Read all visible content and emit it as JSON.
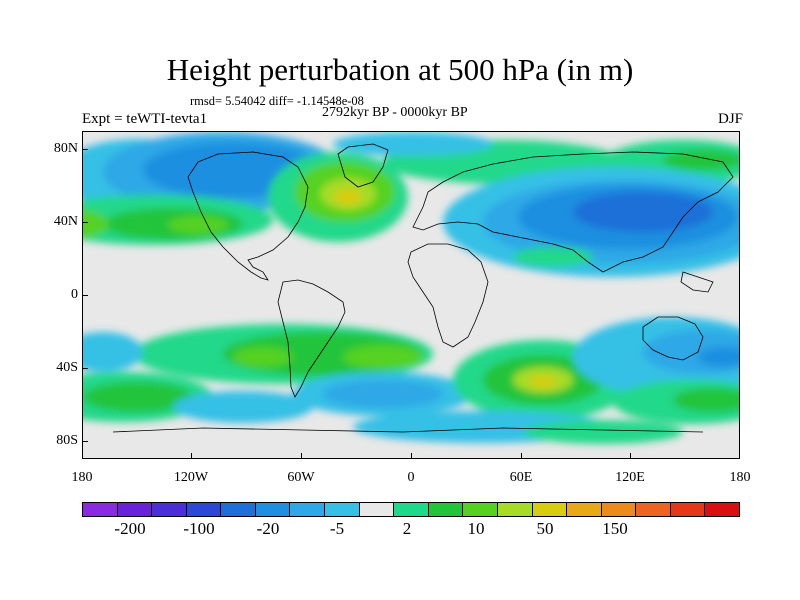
{
  "header": {
    "title": "Height perturbation at 500 hPa (in m)",
    "stats": "rmsd= 5.54042 diff= -1.14548e-08",
    "period": "2792kyr BP - 0000kyr BP",
    "experiment": "Expt = teWTI-tevta1",
    "season": "DJF"
  },
  "axes": {
    "y_labels": [
      "80N",
      "40N",
      "0",
      "40S",
      "80S"
    ],
    "x_labels": [
      "180",
      "120W",
      "60W",
      "0",
      "60E",
      "120E",
      "180"
    ]
  },
  "map_data": {
    "projection": "cylindrical-equidistant",
    "lon_range": [
      -180,
      180
    ],
    "lat_range": [
      -90,
      90
    ],
    "coastlines": true,
    "field": "500 hPa height perturbation (m)"
  },
  "colorbar": {
    "colors": [
      "#8a2be2",
      "#6a22d8",
      "#4b2fd6",
      "#2c48d4",
      "#1f6fd8",
      "#1f8fe0",
      "#2ea8e6",
      "#36c0e6",
      "#e8e8e8",
      "#20d88a",
      "#22c43a",
      "#55d220",
      "#a6dc28",
      "#d8cc10",
      "#e8a818",
      "#ec8a1c",
      "#ec6420",
      "#e43818",
      "#d81010"
    ],
    "labels": [
      "-200",
      "-100",
      "-20",
      "-5",
      "2",
      "10",
      "50",
      "150"
    ]
  }
}
